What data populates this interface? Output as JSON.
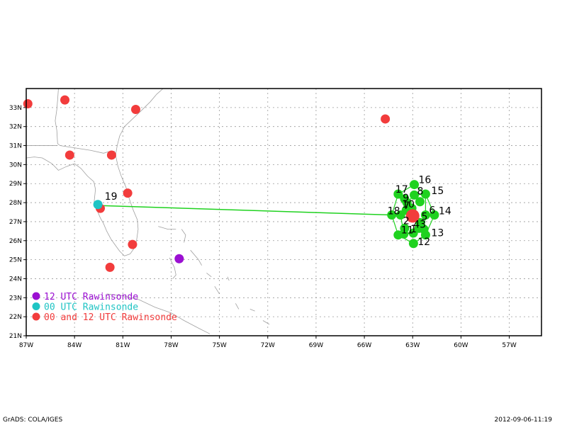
{
  "map": {
    "lon_range": [
      -87,
      -55
    ],
    "lat_range": [
      21,
      34
    ],
    "x_ticks": [
      {
        "lon": -87,
        "label": "87W"
      },
      {
        "lon": -84,
        "label": "84W"
      },
      {
        "lon": -81,
        "label": "81W"
      },
      {
        "lon": -78,
        "label": "78W"
      },
      {
        "lon": -75,
        "label": "75W"
      },
      {
        "lon": -72,
        "label": "72W"
      },
      {
        "lon": -69,
        "label": "69W"
      },
      {
        "lon": -66,
        "label": "66W"
      },
      {
        "lon": -63,
        "label": "63W"
      },
      {
        "lon": -60,
        "label": "60W"
      },
      {
        "lon": -57,
        "label": "57W"
      }
    ],
    "y_ticks": [
      {
        "lat": 21,
        "label": "21N"
      },
      {
        "lat": 22,
        "label": "22N"
      },
      {
        "lat": 23,
        "label": "23N"
      },
      {
        "lat": 24,
        "label": "24N"
      },
      {
        "lat": 25,
        "label": "25N"
      },
      {
        "lat": 26,
        "label": "26N"
      },
      {
        "lat": 27,
        "label": "27N"
      },
      {
        "lat": 28,
        "label": "28N"
      },
      {
        "lat": 29,
        "label": "29N"
      },
      {
        "lat": 30,
        "label": "30N"
      },
      {
        "lat": 31,
        "label": "31N"
      },
      {
        "lat": 32,
        "label": "32N"
      },
      {
        "lat": 33,
        "label": "33N"
      }
    ],
    "grid": true,
    "colors": {
      "raob_both": "#f23c3c",
      "raob_12": "#9b10d2",
      "raob_00": "#1fc4c4",
      "track": "#1fd21f",
      "coast": "#a0a0a0",
      "grid": "#9a9a9a"
    },
    "raob_both_stations": [
      {
        "lon": -86.9,
        "lat": 33.2
      },
      {
        "lon": -84.6,
        "lat": 33.4
      },
      {
        "lon": -80.2,
        "lat": 32.9
      },
      {
        "lon": -84.3,
        "lat": 30.5
      },
      {
        "lon": -81.7,
        "lat": 30.5
      },
      {
        "lon": -80.7,
        "lat": 28.5
      },
      {
        "lon": -82.4,
        "lat": 27.7
      },
      {
        "lon": -80.4,
        "lat": 25.8
      },
      {
        "lon": -81.8,
        "lat": 24.6
      },
      {
        "lon": -64.7,
        "lat": 32.4
      }
    ],
    "raob_12_stations": [
      {
        "lon": -77.5,
        "lat": 25.05
      }
    ],
    "raob_00_stations": [
      {
        "lon": -82.55,
        "lat": 27.9
      }
    ],
    "track_line": [
      {
        "lon": -82.55,
        "lat": 27.85
      },
      {
        "lon": -64.3,
        "lat": 27.35
      }
    ],
    "storm_center": {
      "lon": -63.0,
      "lat": 27.3
    },
    "ring_points": [
      {
        "id": "1",
        "lon": -62.96,
        "lat": 26.4,
        "label": "1"
      },
      {
        "id": "2",
        "lon": -63.5,
        "lat": 26.65,
        "label": "2"
      },
      {
        "id": "3",
        "lon": -62.3,
        "lat": 26.6,
        "label": "3"
      },
      {
        "id": "4",
        "lon": -62.6,
        "lat": 26.65,
        "label": "4"
      },
      {
        "id": "5",
        "lon": -62.55,
        "lat": 26.95,
        "label": "5"
      },
      {
        "id": "6",
        "lon": -62.2,
        "lat": 27.35,
        "label": "6"
      },
      {
        "id": "7",
        "lon": -63.4,
        "lat": 27.6,
        "label": "7"
      },
      {
        "id": "8",
        "lon": -62.9,
        "lat": 28.4,
        "label": "8"
      },
      {
        "id": "9",
        "lon": -63.35,
        "lat": 28.0,
        "label": "9"
      },
      {
        "id": "10",
        "lon": -63.05,
        "lat": 27.7,
        "label": "10"
      },
      {
        "id": "11",
        "lon": -63.55,
        "lat": 26.35,
        "label": "11"
      },
      {
        "id": "12",
        "lon": -62.95,
        "lat": 25.85,
        "label": "12"
      },
      {
        "id": "13",
        "lon": -62.2,
        "lat": 26.3,
        "label": "13"
      },
      {
        "id": "14",
        "lon": -61.65,
        "lat": 27.35,
        "label": "14"
      },
      {
        "id": "15",
        "lon": -62.2,
        "lat": 28.45,
        "label": "15"
      },
      {
        "id": "16",
        "lon": -62.9,
        "lat": 28.95,
        "label": "16"
      },
      {
        "id": "17",
        "lon": -63.9,
        "lat": 28.45,
        "label": "17"
      },
      {
        "id": "18",
        "lon": -64.3,
        "lat": 27.35,
        "label": "18"
      },
      {
        "id": "20",
        "lon": -63.75,
        "lat": 27.35,
        "label": ""
      },
      {
        "id": "21",
        "lon": -63.9,
        "lat": 26.3,
        "label": ""
      },
      {
        "id": "22",
        "lon": -62.55,
        "lat": 28.05,
        "label": ""
      },
      {
        "id": "23",
        "lon": -63.5,
        "lat": 28.2,
        "label": ""
      }
    ],
    "track_label_19": {
      "lon": -82.3,
      "lat": 28.15,
      "label": "19"
    },
    "ring_outer_order": [
      "12",
      "13",
      "14",
      "15",
      "16",
      "17",
      "18",
      "21",
      "12"
    ],
    "ring_inner_order": [
      "1",
      "3",
      "6",
      "15",
      "8",
      "9",
      "17",
      "7",
      "20",
      "11",
      "1"
    ],
    "legend": [
      {
        "label": "12 UTC Rawinsonde",
        "color": "#9b10d2"
      },
      {
        "label": "00 UTC Rawinsonde",
        "color": "#1fc4c4"
      },
      {
        "label": "00 and 12 UTC Rawinsonde",
        "color": "#f23c3c"
      }
    ]
  },
  "footer": {
    "left": "GrADS: COLA/IGES",
    "right": "2012-09-06-11:19"
  }
}
